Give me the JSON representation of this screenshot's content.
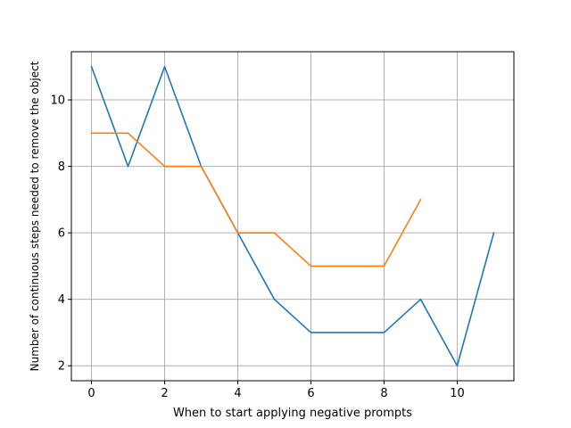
{
  "chart_data": {
    "type": "line",
    "title": "",
    "xlabel": "When to start applying negative prompts",
    "ylabel": "Number of continuous steps needed to remove the object",
    "xlim": [
      -0.55,
      11.55
    ],
    "ylim": [
      1.55,
      11.45
    ],
    "xticks": [
      0,
      2,
      4,
      6,
      8,
      10
    ],
    "yticks": [
      2,
      4,
      6,
      8,
      10
    ],
    "grid": true,
    "series": [
      {
        "color": "#1f77b4",
        "x": [
          0,
          1,
          2,
          3,
          4,
          5,
          6,
          7,
          8,
          9,
          10,
          11
        ],
        "y": [
          11,
          8,
          11,
          8,
          6,
          4,
          3,
          3,
          3,
          4,
          2,
          6
        ]
      },
      {
        "color": "#ff7f0e",
        "x": [
          0,
          1,
          2,
          3,
          4,
          5,
          6,
          7,
          8,
          9
        ],
        "y": [
          9,
          9,
          8,
          8,
          6,
          6,
          5,
          5,
          5,
          7
        ]
      }
    ]
  }
}
